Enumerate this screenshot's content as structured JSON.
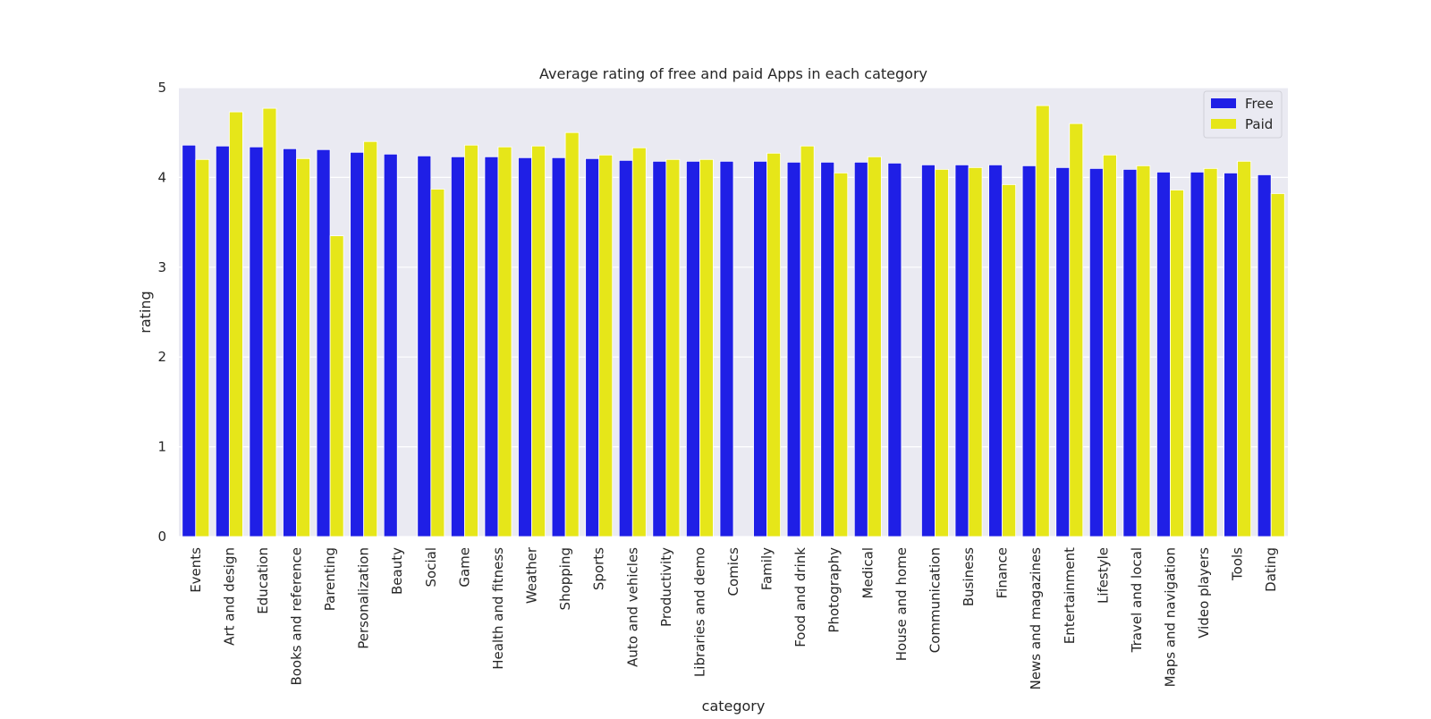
{
  "chart_data": {
    "type": "bar",
    "title": "Average rating of free and paid Apps in each category",
    "xlabel": "category",
    "ylabel": "rating",
    "ylim": [
      0,
      5
    ],
    "yticks": [
      0,
      1,
      2,
      3,
      4,
      5
    ],
    "grid": true,
    "legend_position": "top-right",
    "categories": [
      "Events",
      "Art and design",
      "Education",
      "Books and reference",
      "Parenting",
      "Personalization",
      "Beauty",
      "Social",
      "Game",
      "Health and fitness",
      "Weather",
      "Shopping",
      "Sports",
      "Auto and vehicles",
      "Productivity",
      "Libraries and demo",
      "Comics",
      "Family",
      "Food and drink",
      "Photography",
      "Medical",
      "House and home",
      "Communication",
      "Business",
      "Finance",
      "News and magazines",
      "Entertainment",
      "Lifestyle",
      "Travel and local",
      "Maps and navigation",
      "Video players",
      "Tools",
      "Dating"
    ],
    "series": [
      {
        "name": "Free",
        "color": "#1f1fe6",
        "values": [
          4.36,
          4.35,
          4.34,
          4.32,
          4.31,
          4.28,
          4.26,
          4.24,
          4.23,
          4.23,
          4.22,
          4.22,
          4.21,
          4.19,
          4.18,
          4.18,
          4.18,
          4.18,
          4.17,
          4.17,
          4.17,
          4.16,
          4.14,
          4.14,
          4.14,
          4.13,
          4.11,
          4.1,
          4.09,
          4.06,
          4.06,
          4.05,
          4.03
        ]
      },
      {
        "name": "Paid",
        "color": "#e6e619",
        "values": [
          4.2,
          4.73,
          4.77,
          4.21,
          3.35,
          4.4,
          null,
          3.87,
          4.36,
          4.34,
          4.35,
          4.5,
          4.25,
          4.33,
          4.2,
          4.2,
          null,
          4.27,
          4.35,
          4.05,
          4.23,
          null,
          4.09,
          4.11,
          3.92,
          4.8,
          4.6,
          4.25,
          4.13,
          3.86,
          4.1,
          4.18,
          3.82
        ]
      }
    ]
  }
}
